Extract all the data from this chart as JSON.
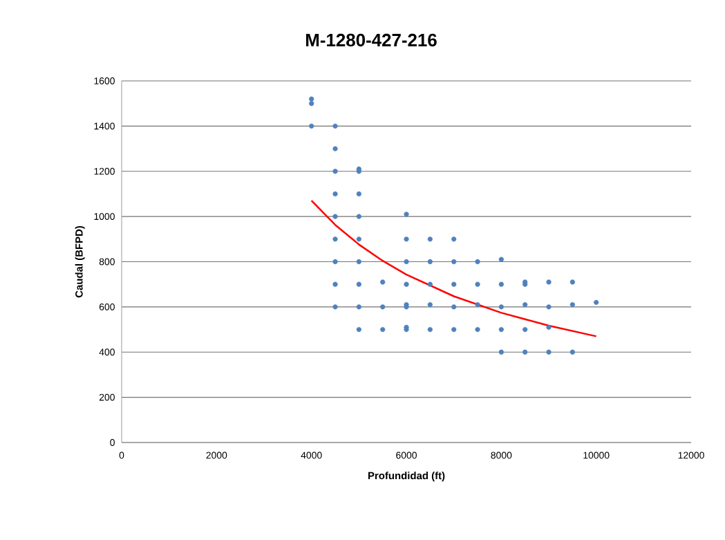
{
  "chart_data": {
    "type": "scatter",
    "title": "M-1280-427-216",
    "xlabel": "Profundidad (ft)",
    "ylabel": "Caudal (BFPD)",
    "xlim": [
      0,
      12000
    ],
    "xticks": [
      0,
      2000,
      4000,
      6000,
      8000,
      10000,
      12000
    ],
    "ylim": [
      0,
      1600
    ],
    "yticks": [
      0,
      200,
      400,
      600,
      800,
      1000,
      1200,
      1400,
      1600
    ],
    "grid": "y",
    "marker": "circle",
    "series": [
      {
        "color": "#4f81bd",
        "x": [
          4000,
          4000,
          4000,
          4500,
          4500,
          4500,
          4500,
          4500,
          4500,
          4500,
          4500,
          4500,
          5000,
          5000,
          5000,
          5000,
          5000,
          5000,
          5000,
          5000,
          5000,
          5500,
          5500,
          5500,
          6000,
          6000,
          6000,
          6000,
          6000,
          6000,
          6000,
          6000,
          6500,
          6500,
          6500,
          6500,
          6500,
          7000,
          7000,
          7000,
          7000,
          7000,
          7500,
          7500,
          7500,
          7500,
          8000,
          8000,
          8000,
          8000,
          8000,
          8500,
          8500,
          8500,
          8500,
          8500,
          9000,
          9000,
          9000,
          9000,
          9500,
          9500,
          9500,
          10000
        ],
        "values": [
          1520,
          1500,
          1400,
          1400,
          1300,
          1200,
          1100,
          1000,
          900,
          800,
          700,
          600,
          1210,
          1200,
          1100,
          1000,
          900,
          800,
          700,
          600,
          500,
          710,
          600,
          500,
          1010,
          900,
          800,
          700,
          610,
          600,
          510,
          500,
          900,
          800,
          700,
          610,
          500,
          900,
          800,
          700,
          600,
          500,
          800,
          700,
          610,
          500,
          810,
          700,
          600,
          500,
          400,
          710,
          700,
          610,
          500,
          400,
          710,
          600,
          510,
          400,
          710,
          610,
          400,
          620
        ]
      },
      {
        "type": "line",
        "color": "#ff0000",
        "marker": "none",
        "x": [
          4000,
          4500,
          5000,
          5500,
          6000,
          7000,
          8000,
          9000,
          10000
        ],
        "values": [
          1070,
          963,
          876,
          804,
          743,
          647,
          574,
          517,
          470
        ]
      }
    ]
  }
}
